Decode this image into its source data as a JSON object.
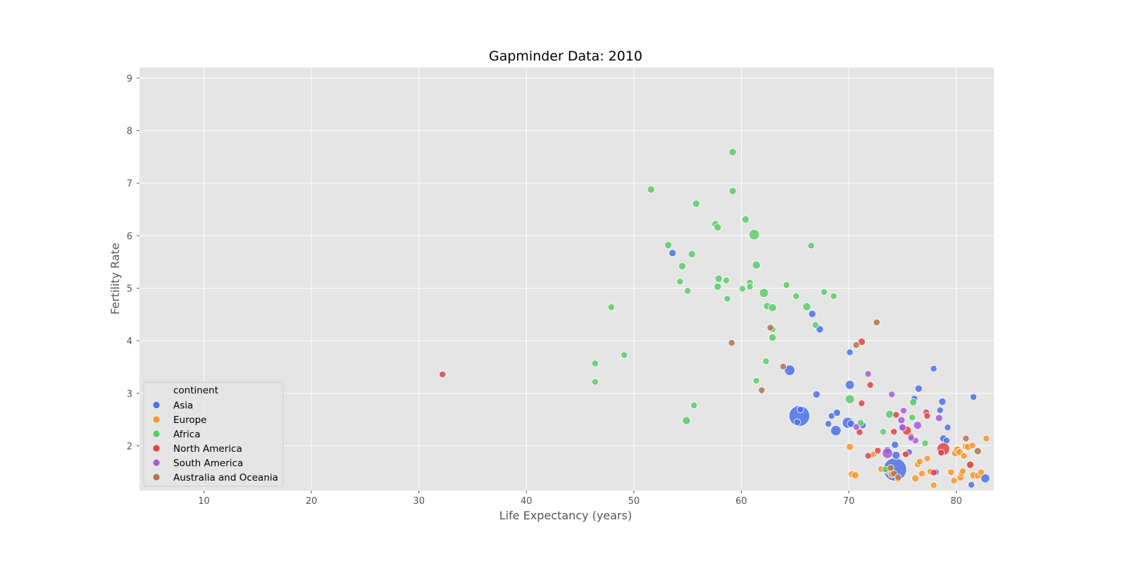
{
  "chart_data": {
    "type": "scatter",
    "title": "Gapminder Data: 2010",
    "xlabel": "Life Expectancy (years)",
    "ylabel": "Fertility Rate",
    "xlim": [
      4,
      83.5
    ],
    "ylim": [
      1.15,
      9.2
    ],
    "xticks": [
      10,
      20,
      30,
      40,
      50,
      60,
      70,
      80
    ],
    "yticks": [
      2,
      3,
      4,
      5,
      6,
      7,
      8,
      9
    ],
    "grid": true,
    "legend_title": "continent",
    "legend_position": "lower-left",
    "colors": {
      "Asia": "#4c72e8",
      "Europe": "#f8962f",
      "Africa": "#5ccd6a",
      "North America": "#de4548",
      "South America": "#a65ed8",
      "Australia and Oceania": "#b0774f"
    },
    "series": [
      {
        "name": "Asia",
        "points": [
          {
            "x": 53.6,
            "y": 5.67,
            "s": 1
          },
          {
            "x": 66.6,
            "y": 4.51,
            "s": 1
          },
          {
            "x": 67.3,
            "y": 4.22,
            "s": 1
          },
          {
            "x": 70.1,
            "y": 3.78,
            "s": 0.8
          },
          {
            "x": 64.5,
            "y": 3.44,
            "s": 2
          },
          {
            "x": 67.0,
            "y": 2.98,
            "s": 1
          },
          {
            "x": 70.1,
            "y": 3.16,
            "s": 1.5
          },
          {
            "x": 65.4,
            "y": 2.57,
            "s": 8
          },
          {
            "x": 65.2,
            "y": 2.45,
            "s": 0.8
          },
          {
            "x": 65.5,
            "y": 2.69,
            "s": 0.8
          },
          {
            "x": 68.4,
            "y": 2.57,
            "s": 0.8
          },
          {
            "x": 68.1,
            "y": 2.42,
            "s": 0.8
          },
          {
            "x": 68.9,
            "y": 2.63,
            "s": 1
          },
          {
            "x": 68.8,
            "y": 2.29,
            "s": 2
          },
          {
            "x": 69.9,
            "y": 2.44,
            "s": 2.2
          },
          {
            "x": 70.2,
            "y": 2.42,
            "s": 1
          },
          {
            "x": 71.3,
            "y": 2.39,
            "s": 0.8
          },
          {
            "x": 74.3,
            "y": 1.55,
            "s": 10
          },
          {
            "x": 74.3,
            "y": 2.02,
            "s": 1
          },
          {
            "x": 75.0,
            "y": 2.35,
            "s": 0.8
          },
          {
            "x": 76.1,
            "y": 2.9,
            "s": 0.8
          },
          {
            "x": 76.5,
            "y": 3.09,
            "s": 1
          },
          {
            "x": 77.9,
            "y": 3.47,
            "s": 0.8
          },
          {
            "x": 78.5,
            "y": 2.68,
            "s": 0.8
          },
          {
            "x": 78.7,
            "y": 2.84,
            "s": 1
          },
          {
            "x": 79.2,
            "y": 2.35,
            "s": 0.8
          },
          {
            "x": 78.8,
            "y": 2.14,
            "s": 1
          },
          {
            "x": 79.1,
            "y": 2.1,
            "s": 0.8
          },
          {
            "x": 78.1,
            "y": 1.5,
            "s": 0.8
          },
          {
            "x": 81.6,
            "y": 2.93,
            "s": 0.8
          },
          {
            "x": 81.4,
            "y": 1.26,
            "s": 0.8
          },
          {
            "x": 82.7,
            "y": 1.38,
            "s": 1.5
          },
          {
            "x": 75.6,
            "y": 1.88,
            "s": 0.8
          },
          {
            "x": 74.4,
            "y": 1.82,
            "s": 1.2
          },
          {
            "x": 73.6,
            "y": 1.92,
            "s": 1
          }
        ]
      },
      {
        "name": "Europe",
        "points": [
          {
            "x": 70.1,
            "y": 1.98,
            "s": 1
          },
          {
            "x": 70.3,
            "y": 1.46,
            "s": 1
          },
          {
            "x": 70.6,
            "y": 1.44,
            "s": 1
          },
          {
            "x": 72.3,
            "y": 1.84,
            "s": 0.8
          },
          {
            "x": 73.0,
            "y": 1.56,
            "s": 0.8
          },
          {
            "x": 73.6,
            "y": 1.53,
            "s": 0.8
          },
          {
            "x": 74.0,
            "y": 1.46,
            "s": 1
          },
          {
            "x": 74.6,
            "y": 1.37,
            "s": 0.8
          },
          {
            "x": 75.2,
            "y": 1.84,
            "s": 0.8
          },
          {
            "x": 76.2,
            "y": 1.38,
            "s": 1
          },
          {
            "x": 76.4,
            "y": 1.65,
            "s": 0.8
          },
          {
            "x": 76.6,
            "y": 1.7,
            "s": 0.8
          },
          {
            "x": 76.8,
            "y": 1.47,
            "s": 0.8
          },
          {
            "x": 77.3,
            "y": 1.76,
            "s": 0.8
          },
          {
            "x": 77.6,
            "y": 1.51,
            "s": 0.8
          },
          {
            "x": 77.9,
            "y": 1.25,
            "s": 0.8
          },
          {
            "x": 79.5,
            "y": 1.5,
            "s": 0.8
          },
          {
            "x": 79.8,
            "y": 1.34,
            "s": 0.8
          },
          {
            "x": 79.9,
            "y": 1.86,
            "s": 1
          },
          {
            "x": 80.1,
            "y": 1.93,
            "s": 1
          },
          {
            "x": 80.3,
            "y": 1.88,
            "s": 1
          },
          {
            "x": 80.4,
            "y": 1.4,
            "s": 1
          },
          {
            "x": 80.5,
            "y": 1.48,
            "s": 0.8
          },
          {
            "x": 80.7,
            "y": 1.81,
            "s": 0.8
          },
          {
            "x": 80.9,
            "y": 1.99,
            "s": 1
          },
          {
            "x": 81.1,
            "y": 1.98,
            "s": 1
          },
          {
            "x": 81.3,
            "y": 1.65,
            "s": 0.8
          },
          {
            "x": 81.5,
            "y": 2.01,
            "s": 0.8
          },
          {
            "x": 81.6,
            "y": 1.44,
            "s": 1
          },
          {
            "x": 82.0,
            "y": 1.43,
            "s": 0.8
          },
          {
            "x": 82.3,
            "y": 1.5,
            "s": 0.8
          },
          {
            "x": 82.8,
            "y": 2.14,
            "s": 0.8
          },
          {
            "x": 80.6,
            "y": 1.52,
            "s": 0.8
          }
        ]
      },
      {
        "name": "Africa",
        "points": [
          {
            "x": 59.2,
            "y": 7.59,
            "s": 1
          },
          {
            "x": 51.6,
            "y": 6.88,
            "s": 1
          },
          {
            "x": 59.2,
            "y": 6.85,
            "s": 1
          },
          {
            "x": 55.8,
            "y": 6.61,
            "s": 1
          },
          {
            "x": 60.4,
            "y": 6.31,
            "s": 1
          },
          {
            "x": 57.6,
            "y": 6.22,
            "s": 1
          },
          {
            "x": 57.8,
            "y": 6.16,
            "s": 1
          },
          {
            "x": 61.2,
            "y": 6.02,
            "s": 2
          },
          {
            "x": 53.2,
            "y": 5.82,
            "s": 1
          },
          {
            "x": 55.4,
            "y": 5.65,
            "s": 1
          },
          {
            "x": 66.5,
            "y": 5.81,
            "s": 0.8
          },
          {
            "x": 54.5,
            "y": 5.42,
            "s": 1
          },
          {
            "x": 61.4,
            "y": 5.44,
            "s": 1.2
          },
          {
            "x": 54.3,
            "y": 5.13,
            "s": 0.8
          },
          {
            "x": 55.0,
            "y": 4.95,
            "s": 0.8
          },
          {
            "x": 57.9,
            "y": 5.18,
            "s": 1
          },
          {
            "x": 58.6,
            "y": 5.15,
            "s": 0.8
          },
          {
            "x": 57.8,
            "y": 5.03,
            "s": 1
          },
          {
            "x": 60.8,
            "y": 5.11,
            "s": 0.8
          },
          {
            "x": 60.1,
            "y": 4.99,
            "s": 0.8
          },
          {
            "x": 60.8,
            "y": 5.03,
            "s": 0.8
          },
          {
            "x": 58.7,
            "y": 4.8,
            "s": 0.8
          },
          {
            "x": 64.2,
            "y": 5.06,
            "s": 0.8
          },
          {
            "x": 62.1,
            "y": 4.91,
            "s": 1.5
          },
          {
            "x": 65.1,
            "y": 4.85,
            "s": 0.8
          },
          {
            "x": 67.7,
            "y": 4.93,
            "s": 0.8
          },
          {
            "x": 68.6,
            "y": 4.85,
            "s": 0.8
          },
          {
            "x": 62.4,
            "y": 4.66,
            "s": 1
          },
          {
            "x": 62.9,
            "y": 4.63,
            "s": 1.2
          },
          {
            "x": 66.1,
            "y": 4.65,
            "s": 1.2
          },
          {
            "x": 66.9,
            "y": 4.3,
            "s": 0.8
          },
          {
            "x": 47.9,
            "y": 4.64,
            "s": 0.8
          },
          {
            "x": 62.9,
            "y": 4.22,
            "s": 0.8
          },
          {
            "x": 62.9,
            "y": 4.06,
            "s": 1
          },
          {
            "x": 49.1,
            "y": 3.73,
            "s": 0.8
          },
          {
            "x": 46.4,
            "y": 3.57,
            "s": 0.8
          },
          {
            "x": 46.4,
            "y": 3.22,
            "s": 0.8
          },
          {
            "x": 62.3,
            "y": 3.61,
            "s": 0.8
          },
          {
            "x": 61.4,
            "y": 3.24,
            "s": 0.8
          },
          {
            "x": 55.6,
            "y": 2.77,
            "s": 0.8
          },
          {
            "x": 54.9,
            "y": 2.48,
            "s": 1.2
          },
          {
            "x": 70.1,
            "y": 2.89,
            "s": 1.5
          },
          {
            "x": 73.8,
            "y": 2.6,
            "s": 1.2
          },
          {
            "x": 73.2,
            "y": 2.27,
            "s": 0.8
          },
          {
            "x": 71.1,
            "y": 2.44,
            "s": 0.8
          },
          {
            "x": 76.0,
            "y": 2.83,
            "s": 1
          },
          {
            "x": 75.9,
            "y": 2.54,
            "s": 0.8
          },
          {
            "x": 77.1,
            "y": 2.05,
            "s": 0.8
          },
          {
            "x": 73.4,
            "y": 1.55,
            "s": 0.8
          }
        ]
      },
      {
        "name": "North America",
        "points": [
          {
            "x": 32.2,
            "y": 3.36,
            "s": 0.8
          },
          {
            "x": 71.2,
            "y": 3.98,
            "s": 1
          },
          {
            "x": 72.0,
            "y": 3.16,
            "s": 0.8
          },
          {
            "x": 71.2,
            "y": 2.81,
            "s": 0.8
          },
          {
            "x": 74.4,
            "y": 2.59,
            "s": 0.8
          },
          {
            "x": 74.2,
            "y": 2.27,
            "s": 0.8
          },
          {
            "x": 71.0,
            "y": 2.26,
            "s": 0.8
          },
          {
            "x": 75.4,
            "y": 2.29,
            "s": 1.5
          },
          {
            "x": 77.2,
            "y": 2.64,
            "s": 0.8
          },
          {
            "x": 77.3,
            "y": 2.57,
            "s": 0.8
          },
          {
            "x": 72.7,
            "y": 1.91,
            "s": 0.8
          },
          {
            "x": 71.8,
            "y": 1.81,
            "s": 0.8
          },
          {
            "x": 75.3,
            "y": 1.84,
            "s": 0.8
          },
          {
            "x": 78.8,
            "y": 1.94,
            "s": 3
          },
          {
            "x": 78.6,
            "y": 1.87,
            "s": 0.8
          },
          {
            "x": 77.9,
            "y": 1.49,
            "s": 0.8
          },
          {
            "x": 81.3,
            "y": 1.64,
            "s": 1
          },
          {
            "x": 75.8,
            "y": 2.18,
            "s": 0.8
          }
        ]
      },
      {
        "name": "South America",
        "points": [
          {
            "x": 71.8,
            "y": 3.37,
            "s": 0.8
          },
          {
            "x": 74.0,
            "y": 2.98,
            "s": 0.8
          },
          {
            "x": 75.1,
            "y": 2.67,
            "s": 0.8
          },
          {
            "x": 74.9,
            "y": 2.49,
            "s": 1
          },
          {
            "x": 76.4,
            "y": 2.39,
            "s": 1.2
          },
          {
            "x": 78.4,
            "y": 2.53,
            "s": 1
          },
          {
            "x": 70.7,
            "y": 2.36,
            "s": 0.8
          },
          {
            "x": 75.0,
            "y": 2.35,
            "s": 1
          },
          {
            "x": 76.2,
            "y": 2.1,
            "s": 0.8
          },
          {
            "x": 73.6,
            "y": 1.86,
            "s": 2
          },
          {
            "x": 75.8,
            "y": 2.15,
            "s": 0.8
          }
        ]
      },
      {
        "name": "Australia and Oceania",
        "points": [
          {
            "x": 72.6,
            "y": 4.35,
            "s": 0.8
          },
          {
            "x": 62.7,
            "y": 4.25,
            "s": 0.8
          },
          {
            "x": 59.1,
            "y": 3.96,
            "s": 0.8
          },
          {
            "x": 70.7,
            "y": 3.92,
            "s": 0.8
          },
          {
            "x": 63.9,
            "y": 3.51,
            "s": 0.8
          },
          {
            "x": 61.9,
            "y": 3.06,
            "s": 0.8
          },
          {
            "x": 80.9,
            "y": 2.14,
            "s": 0.8
          },
          {
            "x": 82.0,
            "y": 1.9,
            "s": 1
          },
          {
            "x": 73.9,
            "y": 1.58,
            "s": 0.8
          },
          {
            "x": 74.2,
            "y": 1.47,
            "s": 0.8
          },
          {
            "x": 74.6,
            "y": 1.4,
            "s": 0.8
          }
        ]
      }
    ]
  }
}
